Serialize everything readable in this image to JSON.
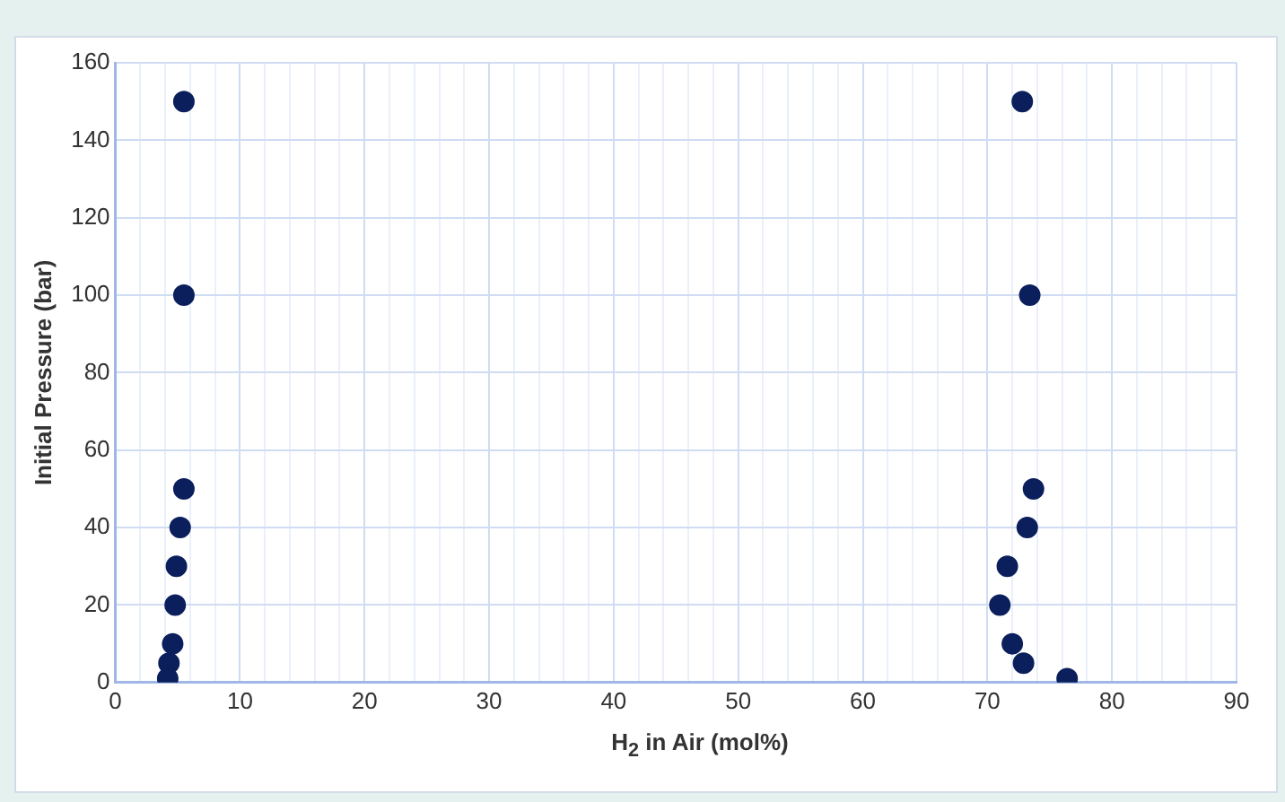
{
  "chart_data": {
    "type": "scatter",
    "xlabel": "H$_{2}$ in Air (mol%)",
    "ylabel": "Initial Pressure (bar)",
    "series": [
      {
        "color": "#0b1f5c",
        "x": [
          5.5,
          5.5,
          5.5,
          5.2,
          4.9,
          4.8,
          4.6,
          4.3,
          4.2,
          72.8,
          73.4,
          73.7,
          73.2,
          71.6,
          71.0,
          72.0,
          72.9,
          76.4
        ],
        "values": [
          150,
          100,
          50,
          40,
          30,
          20,
          10,
          5,
          1,
          150,
          100,
          50,
          40,
          30,
          20,
          10,
          5,
          1
        ]
      }
    ],
    "xlim": [
      0,
      90
    ],
    "ylim": [
      0,
      160
    ],
    "xticks": [
      0,
      {
        "value": 2,
        "label": null
      },
      {
        "value": 4,
        "label": null
      },
      {
        "value": 6,
        "label": null
      },
      {
        "value": 8,
        "label": null
      },
      10,
      {
        "value": 12,
        "label": null
      },
      {
        "value": 14,
        "label": null
      },
      {
        "value": 16,
        "label": null
      },
      {
        "value": 18,
        "label": null
      },
      20,
      {
        "value": 22,
        "label": null
      },
      {
        "value": 24,
        "label": null
      },
      {
        "value": 26,
        "label": null
      },
      {
        "value": 28,
        "label": null
      },
      30,
      {
        "value": 32,
        "label": null
      },
      {
        "value": 34,
        "label": null
      },
      {
        "value": 36,
        "label": null
      },
      {
        "value": 38,
        "label": null
      },
      40,
      {
        "value": 42,
        "label": null
      },
      {
        "value": 44,
        "label": null
      },
      {
        "value": 46,
        "label": null
      },
      {
        "value": 48,
        "label": null
      },
      50,
      {
        "value": 52,
        "label": null
      },
      {
        "value": 54,
        "label": null
      },
      {
        "value": 56,
        "label": null
      },
      {
        "value": 58,
        "label": null
      },
      60,
      {
        "value": 62,
        "label": null
      },
      {
        "value": 64,
        "label": null
      },
      {
        "value": 66,
        "label": null
      },
      {
        "value": 68,
        "label": null
      },
      70,
      {
        "value": 72,
        "label": null
      },
      {
        "value": 74,
        "label": null
      },
      {
        "value": 76,
        "label": null
      },
      {
        "value": 78,
        "label": null
      },
      80,
      {
        "value": 82,
        "label": null
      },
      {
        "value": 84,
        "label": null
      },
      {
        "value": 86,
        "label": null
      },
      {
        "value": 88,
        "label": null
      },
      90
    ],
    "yticks": [
      0,
      20,
      40,
      60,
      80,
      100,
      120,
      140,
      160
    ],
    "grid": true,
    "marker": "circle",
    "legend": false
  }
}
